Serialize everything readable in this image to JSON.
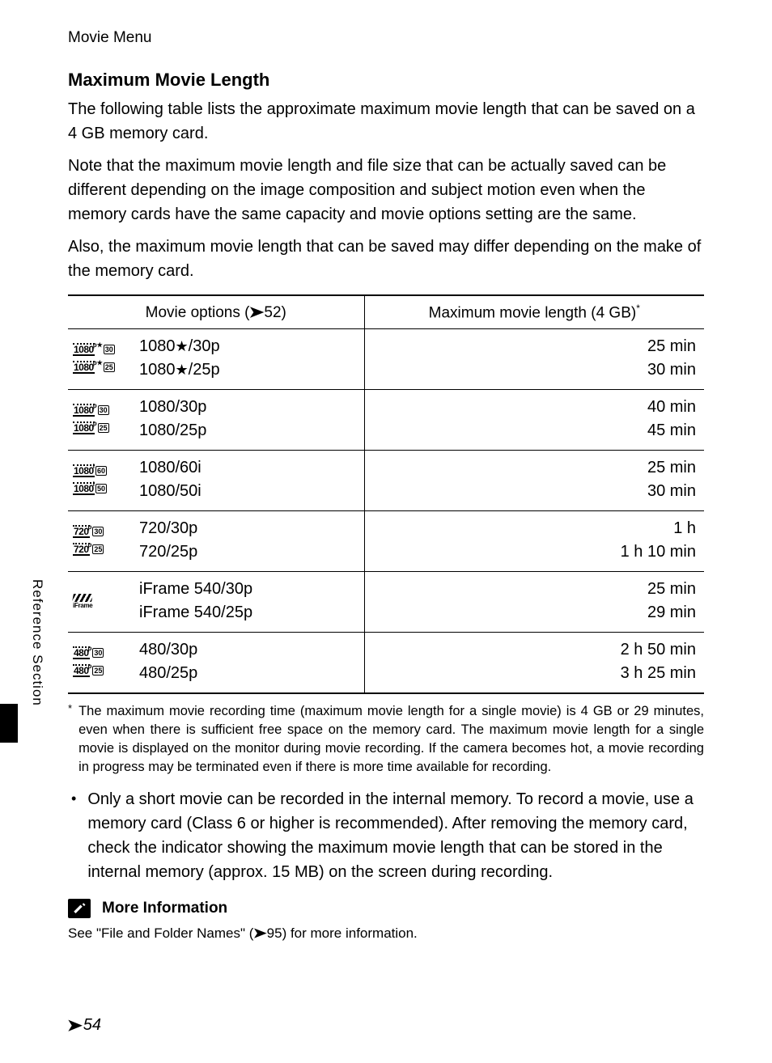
{
  "header": "Movie Menu",
  "section_title": "Maximum Movie Length",
  "paragraphs": {
    "p1": "The following table lists the approximate maximum movie length that can be saved on a 4 GB memory card.",
    "p2": "Note that the maximum movie length and file size that can be actually saved can be different depending on the image composition and subject motion even when the memory cards have the same capacity and movie options setting are the same.",
    "p3": "Also, the maximum movie length that can be saved may differ depending on the make of the memory card."
  },
  "table": {
    "col1_prefix": "Movie options (",
    "col1_ref": "52",
    "col1_suffix": ")",
    "col2": "Maximum movie length (4 GB)",
    "col2_sup": "*",
    "rows": [
      {
        "icons": [
          {
            "type": "res",
            "main": "1080",
            "corner": "p★",
            "sub": "30"
          },
          {
            "type": "res",
            "main": "1080",
            "corner": "p★",
            "sub": "25"
          }
        ],
        "labels": [
          "1080★/30p",
          "1080★/25p"
        ],
        "lengths": [
          "25 min",
          "30 min"
        ]
      },
      {
        "icons": [
          {
            "type": "res",
            "main": "1080",
            "corner": "p",
            "sub": "30"
          },
          {
            "type": "res",
            "main": "1080",
            "corner": "p",
            "sub": "25"
          }
        ],
        "labels": [
          "1080/30p",
          "1080/25p"
        ],
        "lengths": [
          "40 min",
          "45 min"
        ]
      },
      {
        "icons": [
          {
            "type": "res",
            "main": "1080",
            "corner": "i",
            "sub": "60"
          },
          {
            "type": "res",
            "main": "1080",
            "corner": "i",
            "sub": "50"
          }
        ],
        "labels": [
          "1080/60i",
          "1080/50i"
        ],
        "lengths": [
          "25 min",
          "30 min"
        ]
      },
      {
        "icons": [
          {
            "type": "res",
            "main": "720",
            "corner": "p",
            "sub": "30"
          },
          {
            "type": "res",
            "main": "720",
            "corner": "p",
            "sub": "25"
          }
        ],
        "labels": [
          "720/30p",
          "720/25p"
        ],
        "lengths": [
          "1 h",
          "1 h 10 min"
        ]
      },
      {
        "icons": [
          {
            "type": "iframe",
            "txt": "iFrame"
          }
        ],
        "labels": [
          "iFrame 540/30p",
          "iFrame 540/25p"
        ],
        "lengths": [
          "25 min",
          "29 min"
        ]
      },
      {
        "icons": [
          {
            "type": "res",
            "main": "480",
            "corner": "p",
            "sub": "30"
          },
          {
            "type": "res",
            "main": "480",
            "corner": "p",
            "sub": "25"
          }
        ],
        "labels": [
          "480/30p",
          "480/25p"
        ],
        "lengths": [
          "2 h 50 min",
          "3 h 25 min"
        ]
      }
    ]
  },
  "footnote": {
    "marker": "*",
    "text": "The maximum movie recording time (maximum movie length for a single movie) is 4 GB or 29 minutes, even when there is sufficient free space on the memory card. The maximum movie length for a single movie is displayed on the monitor during movie recording. If the camera becomes hot, a movie recording in progress may be terminated even if there is more time available for recording."
  },
  "bullet": {
    "dot": "•",
    "text": "Only a short movie can be recorded in the internal memory. To record a movie, use a memory card (Class 6 or higher is recommended). After removing the memory card, check the indicator showing the maximum movie length that can be stored in the internal memory (approx. 15 MB) on the screen during recording."
  },
  "more_info": {
    "title": "More Information",
    "body_prefix": "See \"File and Folder Names\" (",
    "body_ref": "95",
    "body_suffix": ") for more information."
  },
  "side_label": "Reference Section",
  "page_number": "54"
}
